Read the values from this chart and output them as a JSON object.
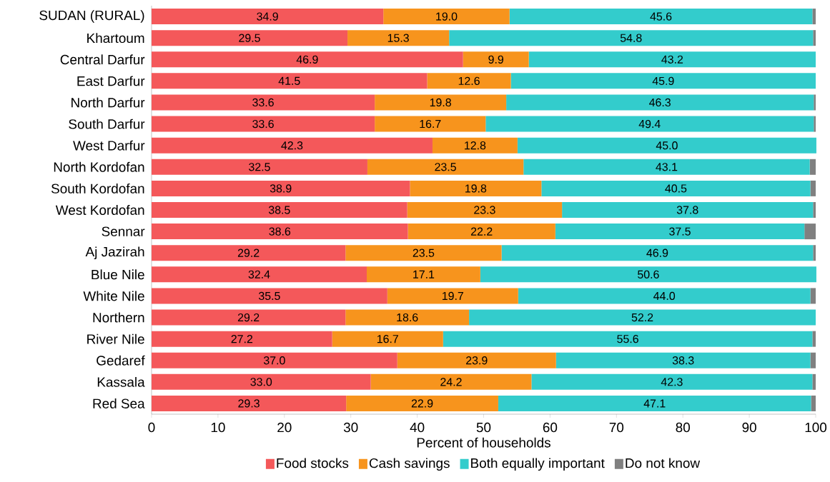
{
  "chart_data": {
    "type": "bar",
    "orientation": "horizontal",
    "stacked": true,
    "categories": [
      "SUDAN (RURAL)",
      "Khartoum",
      "Central Darfur",
      "East Darfur",
      "North Darfur",
      "South Darfur",
      "West Darfur",
      "North Kordofan",
      "South Kordofan",
      "West Kordofan",
      "Sennar",
      "Aj Jazirah",
      "Blue Nile",
      "White Nile",
      "Northern",
      "River Nile",
      "Gedaref",
      "Kassala",
      "Red Sea"
    ],
    "series": [
      {
        "name": "Food stocks",
        "color": "#f4585a",
        "values": [
          34.9,
          29.5,
          46.9,
          41.5,
          33.6,
          33.6,
          42.3,
          32.5,
          38.9,
          38.5,
          38.6,
          29.2,
          32.4,
          35.5,
          29.2,
          27.2,
          37.0,
          33.0,
          29.3
        ],
        "value_labels": [
          "34.9",
          "29.5",
          "46.9",
          "41.5",
          "33.6",
          "33.6",
          "42.3",
          "32.5",
          "38.9",
          "38.5",
          "38.6",
          "29.2",
          "32.4",
          "35.5",
          "29.2",
          "27.2",
          "37.0",
          "33.0",
          "29.3"
        ]
      },
      {
        "name": "Cash savings",
        "color": "#f7941d",
        "values": [
          19.0,
          15.3,
          9.9,
          12.6,
          19.8,
          16.7,
          12.8,
          23.5,
          19.8,
          23.3,
          22.2,
          23.5,
          17.1,
          19.7,
          18.6,
          16.7,
          23.9,
          24.2,
          22.9
        ],
        "value_labels": [
          "19.0",
          "15.3",
          "9.9",
          "12.6",
          "19.8",
          "16.7",
          "12.8",
          "23.5",
          "19.8",
          "23.3",
          "22.2",
          "23.5",
          "17.1",
          "19.7",
          "18.6",
          "16.7",
          "23.9",
          "24.2",
          "22.9"
        ]
      },
      {
        "name": "Both equally important",
        "color": "#33cccc",
        "values": [
          45.6,
          54.8,
          43.2,
          45.9,
          46.3,
          49.4,
          45.0,
          43.1,
          40.5,
          37.8,
          37.5,
          46.9,
          50.6,
          44.0,
          52.2,
          55.6,
          38.3,
          42.3,
          47.1
        ],
        "value_labels": [
          "45.6",
          "54.8",
          "43.2",
          "45.9",
          "46.3",
          "49.4",
          "45.0",
          "43.1",
          "40.5",
          "37.8",
          "37.5",
          "46.9",
          "50.6",
          "44.0",
          "52.2",
          "55.6",
          "38.3",
          "42.3",
          "47.1"
        ]
      },
      {
        "name": "Do not know",
        "color": "#808080",
        "values": [
          0.5,
          0.4,
          0,
          0,
          0.3,
          0.3,
          0,
          0.9,
          0.8,
          0.4,
          1.7,
          0.4,
          0,
          0.8,
          0,
          0.5,
          0.8,
          0.5,
          0.7
        ]
      }
    ],
    "xlim": [
      0,
      100
    ],
    "xticks": [
      0,
      10,
      20,
      30,
      40,
      50,
      60,
      70,
      80,
      90,
      100
    ],
    "xlabel": "Percent of households",
    "legend": "bottom"
  }
}
